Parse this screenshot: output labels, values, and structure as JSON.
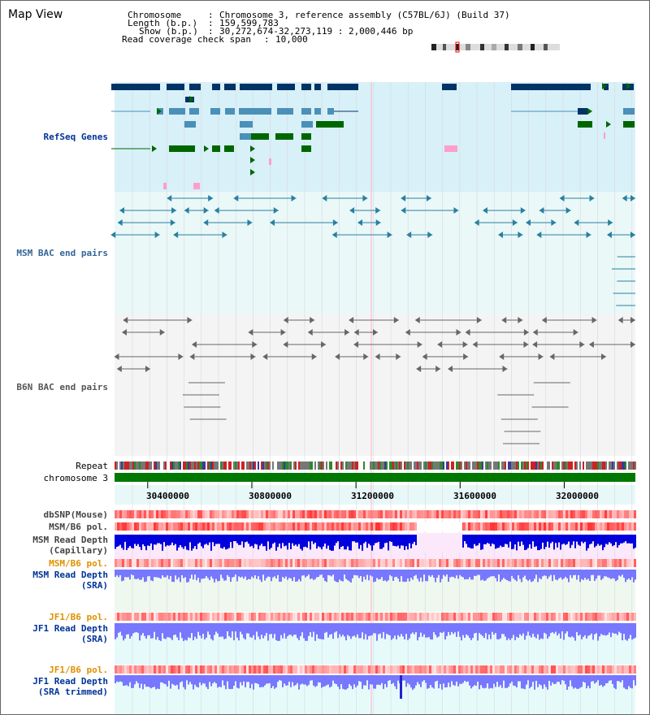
{
  "view": {
    "title": "Map View"
  },
  "info": {
    "chromosome_key": "Chromosome",
    "chromosome_value": "Chromosome 3, reference assembly (C57BL/6J) (Build 37)",
    "length_key": "Length (b.p.)",
    "length_value": "159,599,783",
    "show_key": "Show (b.p.)",
    "show_value": "30,272,674-32,273,119 : 2,000,446 bp",
    "coverage_key": "Read coverage check span",
    "coverage_value": "10,000"
  },
  "tracks": {
    "refseq": "RefSeq Genes",
    "msm_bac": "MSM BAC end pairs",
    "b6n_bac": "B6N BAC end pairs",
    "repeat": "Repeat",
    "chromosome": "chromosome 3",
    "dbsnp": "dbSNP(Mouse)",
    "msm_b6_pol_1": "MSM/B6 pol.",
    "msm_read_depth_cap": "MSM Read Depth\n(Capillary)",
    "msm_b6_pol_2": "MSM/B6 pol.",
    "msm_read_depth_sra": "MSM Read Depth\n(SRA)",
    "jf1_b6_pol_1": "JF1/B6 pol.",
    "jf1_read_depth_sra": "JF1 Read Depth\n(SRA)",
    "jf1_b6_pol_2": "JF1/B6 pol.",
    "jf1_read_depth_trim": "JF1 Read Depth\n(SRA trimmed)"
  },
  "axis": {
    "ticks": [
      "30400000",
      "30800000",
      "31200000",
      "31600000",
      "32000000"
    ],
    "tick_values": [
      30400000,
      30800000,
      31200000,
      31600000,
      32000000
    ],
    "range": [
      30272674,
      32273119
    ]
  },
  "colors": {
    "refseq_bg": "#d8f0f8",
    "bac_bg": "#eaf8f8",
    "b6n_bg": "#f4f4f4",
    "gene_dark": "#003366",
    "gene_mid": "#4a90b8",
    "gene_green": "#006600",
    "gene_pink": "#ff9ecb",
    "msm_label": "#003399",
    "orange_label": "#e09000",
    "chromosome_bar": "#007700",
    "depth_blue": "#0000dd",
    "depth_light_blue": "#7777ff"
  }
}
